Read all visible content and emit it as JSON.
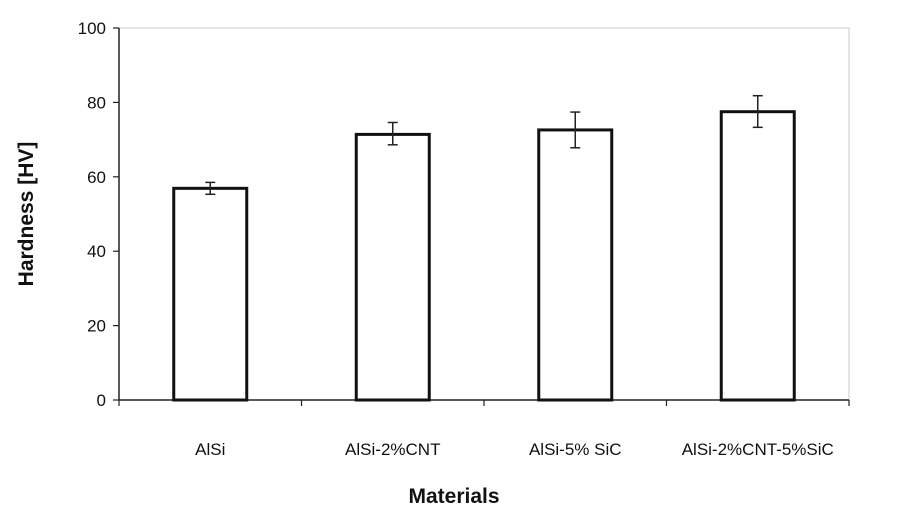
{
  "chart_data": {
    "type": "bar",
    "xlabel": "Materials",
    "ylabel": "Hardness [HV]",
    "ylim": [
      0,
      100
    ],
    "yticks": [
      0,
      20,
      40,
      60,
      80,
      100
    ],
    "categories": [
      "AlSi",
      "AlSi-2%CNT",
      "AlSi-5% SiC",
      "AlSi-2%CNT-5%SiC"
    ],
    "values": [
      56.9,
      71.4,
      72.6,
      77.5
    ],
    "error_low": [
      55.3,
      68.6,
      67.8,
      73.3
    ],
    "error_high": [
      58.5,
      74.6,
      77.4,
      81.8
    ],
    "bar_fill": "#ffffff",
    "bar_stroke": "#111111",
    "grid": false,
    "legend": "none"
  }
}
